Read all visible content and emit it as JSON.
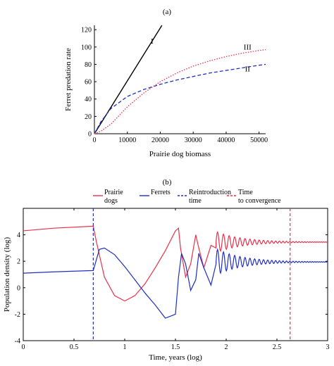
{
  "chart_data": [
    {
      "panel_label": "(a)",
      "type": "line",
      "xlabel": "Prairie dog biomass",
      "ylabel": "Ferret predation rate",
      "xlim": [
        0,
        52000
      ],
      "ylim": [
        0,
        125
      ],
      "xticks": [
        0,
        10000,
        20000,
        30000,
        40000,
        50000
      ],
      "yticks": [
        0,
        20,
        40,
        60,
        80,
        100,
        120
      ],
      "grid": false,
      "series": [
        {
          "name": "I",
          "color": "#000000",
          "style": "solid",
          "x": [
            0,
            20500
          ],
          "y": [
            0,
            125
          ]
        },
        {
          "name": "II",
          "color": "#1f2fbf",
          "style": "dashed",
          "x": [
            0,
            2000,
            5000,
            10000,
            15000,
            20000,
            25000,
            30000,
            35000,
            40000,
            45000,
            50000,
            52000
          ],
          "y": [
            0,
            14,
            29,
            43,
            51,
            57,
            62,
            66,
            70,
            73,
            76,
            79,
            80
          ]
        },
        {
          "name": "III",
          "color": "#e8304a",
          "style": "dotted",
          "x": [
            0,
            2000,
            5000,
            8000,
            10000,
            15000,
            20000,
            25000,
            30000,
            35000,
            40000,
            45000,
            50000,
            52000
          ],
          "y": [
            0,
            3,
            11,
            23,
            31,
            47,
            60,
            70,
            78,
            84,
            89,
            93,
            96,
            97
          ]
        }
      ],
      "annotations": [
        {
          "text": "I",
          "x": 17500,
          "y": 104
        },
        {
          "text": "III",
          "x": 46500,
          "y": 97
        },
        {
          "text": "II",
          "x": 46500,
          "y": 72
        }
      ]
    },
    {
      "panel_label": "(b)",
      "type": "line",
      "xlabel": "Time, years (log)",
      "ylabel": "Population density (log)",
      "xlim": [
        0,
        3
      ],
      "ylim": [
        -4,
        6
      ],
      "xticks": [
        0,
        0.5,
        1,
        1.5,
        2,
        2.5,
        3
      ],
      "xtick_labels": [
        "0",
        "0.5",
        "1",
        "1.5",
        "2",
        "2.5",
        "3"
      ],
      "yticks": [
        -4,
        -2,
        0,
        2,
        4
      ],
      "grid": false,
      "legend_position": "top",
      "legend": [
        {
          "label": "Prairie dogs",
          "color": "#e8304a",
          "style": "solid"
        },
        {
          "label": "Ferrets",
          "color": "#1f2fbf",
          "style": "solid"
        },
        {
          "label": "Reintroduction time",
          "color": "#1f2fbf",
          "style": "dashed"
        },
        {
          "label": "Time to convergence",
          "color": "#e8304a",
          "style": "dashed"
        }
      ],
      "series": [
        {
          "name": "Prairie dogs",
          "color": "#e8304a",
          "style": "solid",
          "x": [
            0,
            0.3,
            0.69,
            0.72,
            0.8,
            0.9,
            1.0,
            1.1,
            1.2,
            1.3,
            1.4,
            1.5,
            1.53,
            1.55,
            1.6,
            1.65,
            1.7,
            1.73,
            1.78,
            1.85,
            1.9
          ],
          "y": [
            4.3,
            4.5,
            4.65,
            3.5,
            0.8,
            -0.6,
            -1.0,
            -0.6,
            0.3,
            1.5,
            2.8,
            4.3,
            4.5,
            3.0,
            0.8,
            1.8,
            4.0,
            3.0,
            1.5,
            3.2,
            3.0
          ],
          "oscillation": {
            "from": 1.9,
            "to": 3.0,
            "center": 3.45,
            "initial_amplitude": 0.8,
            "period_start": 0.06,
            "period_end": 0.018
          }
        },
        {
          "name": "Ferrets",
          "color": "#1f2fbf",
          "style": "solid",
          "x": [
            0,
            0.3,
            0.69,
            0.75,
            0.8,
            0.9,
            1.0,
            1.1,
            1.2,
            1.3,
            1.4,
            1.5,
            1.53,
            1.56,
            1.6,
            1.65,
            1.7,
            1.73,
            1.78,
            1.85,
            1.9
          ],
          "y": [
            1.1,
            1.2,
            1.3,
            2.9,
            3.0,
            2.5,
            1.6,
            0.6,
            -0.4,
            -1.3,
            -2.3,
            -2.0,
            0.8,
            2.6,
            1.8,
            -0.2,
            0.6,
            2.6,
            1.5,
            0.2,
            1.8
          ],
          "oscillation": {
            "from": 1.9,
            "to": 3.0,
            "center": 1.95,
            "initial_amplitude": 1.0,
            "period_start": 0.06,
            "period_end": 0.018
          }
        },
        {
          "name": "Reintroduction time",
          "color": "#1f2fbf",
          "style": "dashed",
          "vertical_x": 0.69
        },
        {
          "name": "Time to convergence",
          "color": "#e8304a",
          "style": "dashed",
          "vertical_x": 2.63
        }
      ]
    }
  ]
}
